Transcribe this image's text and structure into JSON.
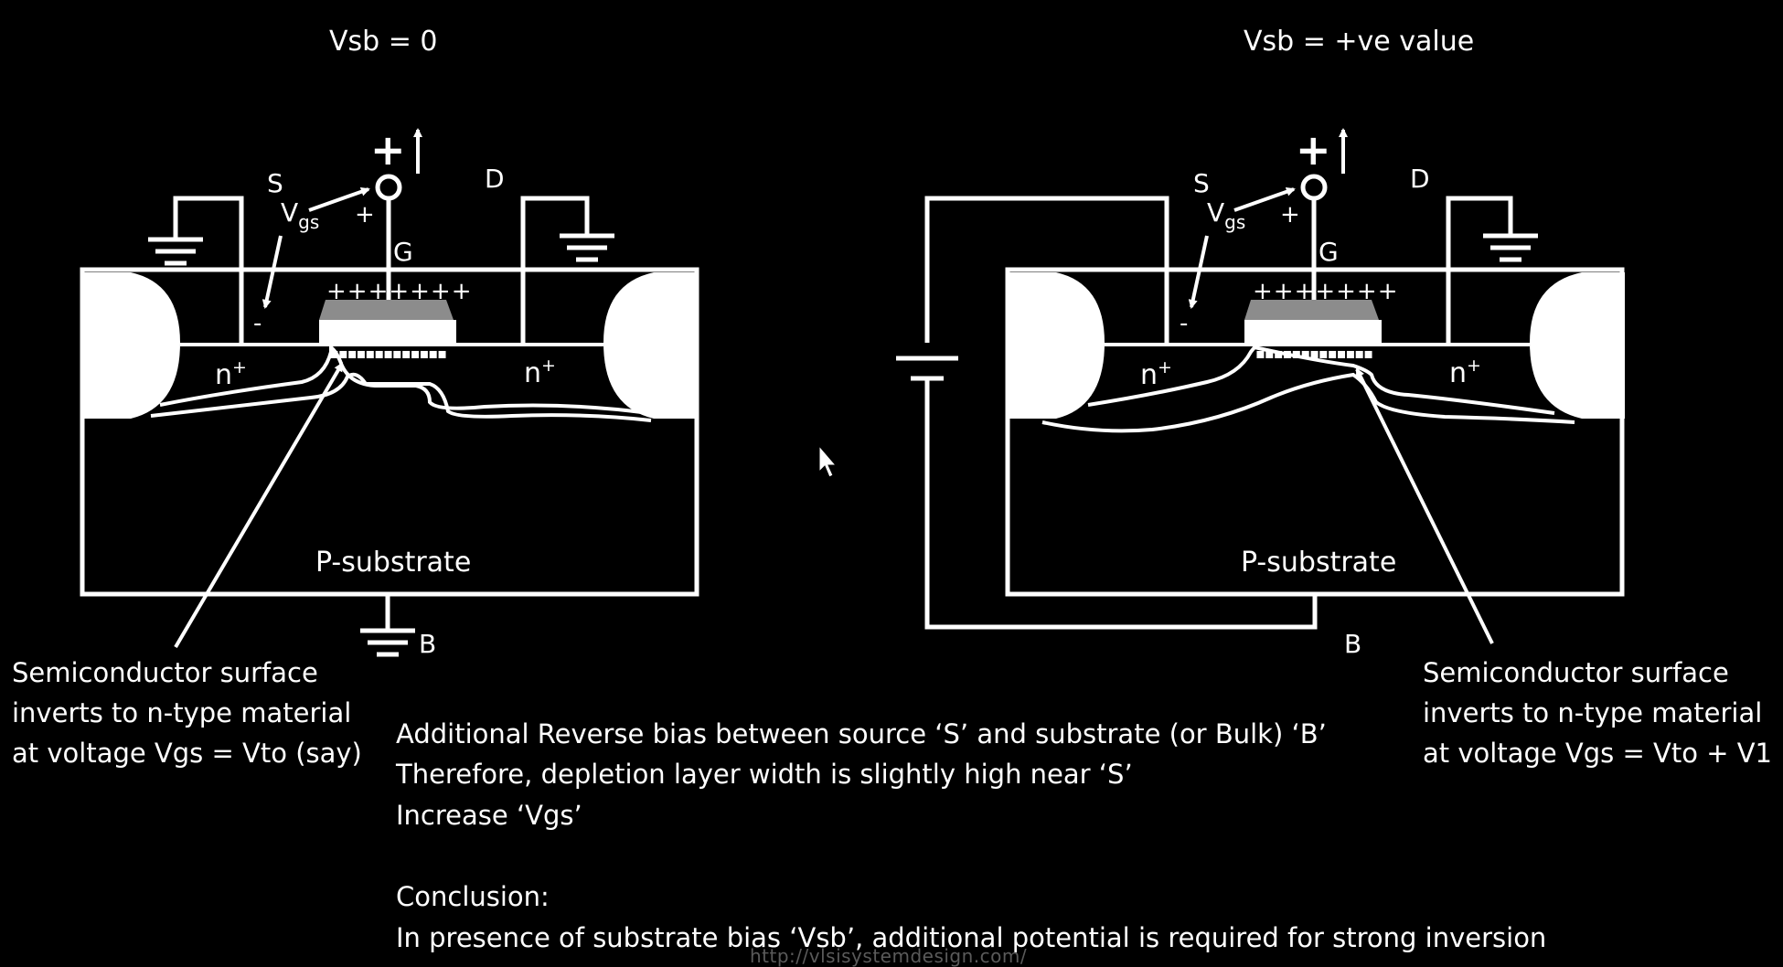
{
  "left_diagram": {
    "title": "Vsb = 0",
    "source_label": "S",
    "drain_label": "D",
    "gate_label": "G",
    "vgs_main": "V",
    "vgs_sub": "gs",
    "plus_big": "+",
    "plus_small": "+",
    "minus": "-",
    "gate_charges": "+++++++",
    "n_left": "n",
    "n_right": "n",
    "n_sup": "+",
    "substrate_label": "P-substrate",
    "bulk_label": "B",
    "annotation_lines": [
      "Semiconductor surface",
      "inverts to n-type material",
      "at voltage Vgs = Vto (say)"
    ]
  },
  "right_diagram": {
    "title": "Vsb = +ve value",
    "source_label": "S",
    "drain_label": "D",
    "gate_label": "G",
    "vgs_main": "V",
    "vgs_sub": "gs",
    "plus_big": "+",
    "plus_small": "+",
    "minus": "-",
    "gate_charges": "+++++++",
    "n_left": "n",
    "n_right": "n",
    "n_sup": "+",
    "substrate_label": "P-substrate",
    "bulk_label": "B",
    "annotation_lines": [
      "Semiconductor surface",
      "inverts to n-type material",
      "at voltage Vgs = Vto + V1"
    ]
  },
  "explanation": {
    "lines": [
      "Additional Reverse bias between source ‘S’ and substrate (or Bulk) ‘B’",
      "Therefore, depletion layer width is slightly high near ‘S’",
      "Increase ‘Vgs’"
    ],
    "conclusion_heading": "Conclusion:",
    "conclusion_text": "In presence of substrate bias ‘Vsb’, additional potential is required for strong inversion"
  },
  "footer": {
    "url": "http://vlsisystemdesign.com/"
  },
  "colors": {
    "background": "#000000",
    "foreground": "#ffffff",
    "gate_metal": "#8c8c8c"
  }
}
